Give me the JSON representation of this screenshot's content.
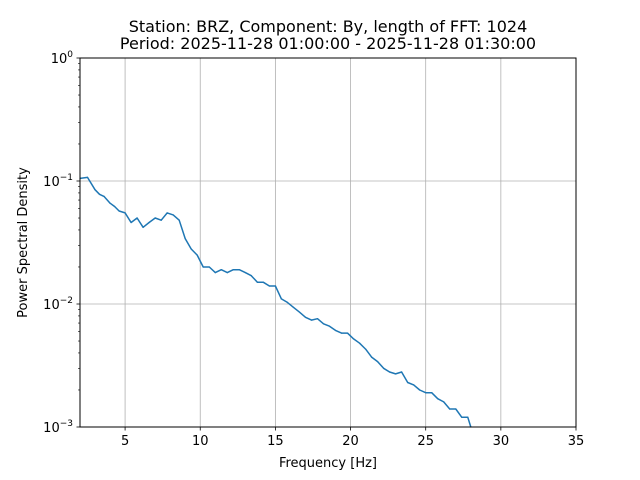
{
  "chart_data": {
    "type": "line",
    "title_line1": "Station: BRZ, Component: By, length of FFT: 1024",
    "title_line2": "Period: 2025-11-28 01:00:00 - 2025-11-28 01:30:00",
    "xlabel": "Frequency [Hz]",
    "ylabel": "Power Spectral Density",
    "xlim": [
      2,
      35
    ],
    "ylim": [
      0.001,
      1
    ],
    "yscale": "log",
    "grid": true,
    "x_ticks": [
      {
        "value": 5,
        "label": "5"
      },
      {
        "value": 10,
        "label": "10"
      },
      {
        "value": 15,
        "label": "15"
      },
      {
        "value": 20,
        "label": "20"
      },
      {
        "value": 25,
        "label": "25"
      },
      {
        "value": 30,
        "label": "30"
      },
      {
        "value": 35,
        "label": "35"
      }
    ],
    "y_ticks": [
      {
        "value": 0.001,
        "base": "10",
        "exp": "−3"
      },
      {
        "value": 0.01,
        "base": "10",
        "exp": "−2"
      },
      {
        "value": 0.1,
        "base": "10",
        "exp": "−1"
      },
      {
        "value": 1,
        "base": "10",
        "exp": "0"
      }
    ],
    "series": [
      {
        "color": "#1f77b4",
        "x": [
          2.0,
          2.5,
          3.0,
          3.3,
          3.6,
          4.0,
          4.3,
          4.6,
          5.0,
          5.4,
          5.8,
          6.2,
          6.6,
          7.0,
          7.4,
          7.8,
          8.2,
          8.6,
          9.0,
          9.4,
          9.8,
          10.2,
          10.6,
          11.0,
          11.4,
          11.8,
          12.2,
          12.6,
          13.0,
          13.4,
          13.8,
          14.2,
          14.6,
          15.0,
          15.4,
          15.8,
          16.2,
          16.6,
          17.0,
          17.4,
          17.8,
          18.2,
          18.6,
          19.0,
          19.4,
          19.8,
          20.2,
          20.6,
          21.0,
          21.4,
          21.8,
          22.2,
          22.6,
          23.0,
          23.4,
          23.8,
          24.2,
          24.6,
          25.0,
          25.4,
          25.8,
          26.2,
          26.6,
          27.0,
          27.4,
          27.8,
          28.0
        ],
        "y": [
          0.105,
          0.107,
          0.085,
          0.078,
          0.075,
          0.066,
          0.062,
          0.057,
          0.055,
          0.046,
          0.05,
          0.042,
          0.046,
          0.05,
          0.048,
          0.055,
          0.053,
          0.048,
          0.034,
          0.028,
          0.025,
          0.02,
          0.02,
          0.018,
          0.019,
          0.018,
          0.019,
          0.019,
          0.018,
          0.017,
          0.015,
          0.015,
          0.014,
          0.014,
          0.011,
          0.0103,
          0.0094,
          0.0086,
          0.0078,
          0.0074,
          0.0076,
          0.0069,
          0.0066,
          0.0061,
          0.0058,
          0.0058,
          0.0052,
          0.0048,
          0.0043,
          0.0037,
          0.0034,
          0.003,
          0.0028,
          0.0027,
          0.0028,
          0.0023,
          0.0022,
          0.002,
          0.0019,
          0.0019,
          0.0017,
          0.0016,
          0.0014,
          0.0014,
          0.0012,
          0.0012,
          0.001
        ]
      }
    ]
  }
}
